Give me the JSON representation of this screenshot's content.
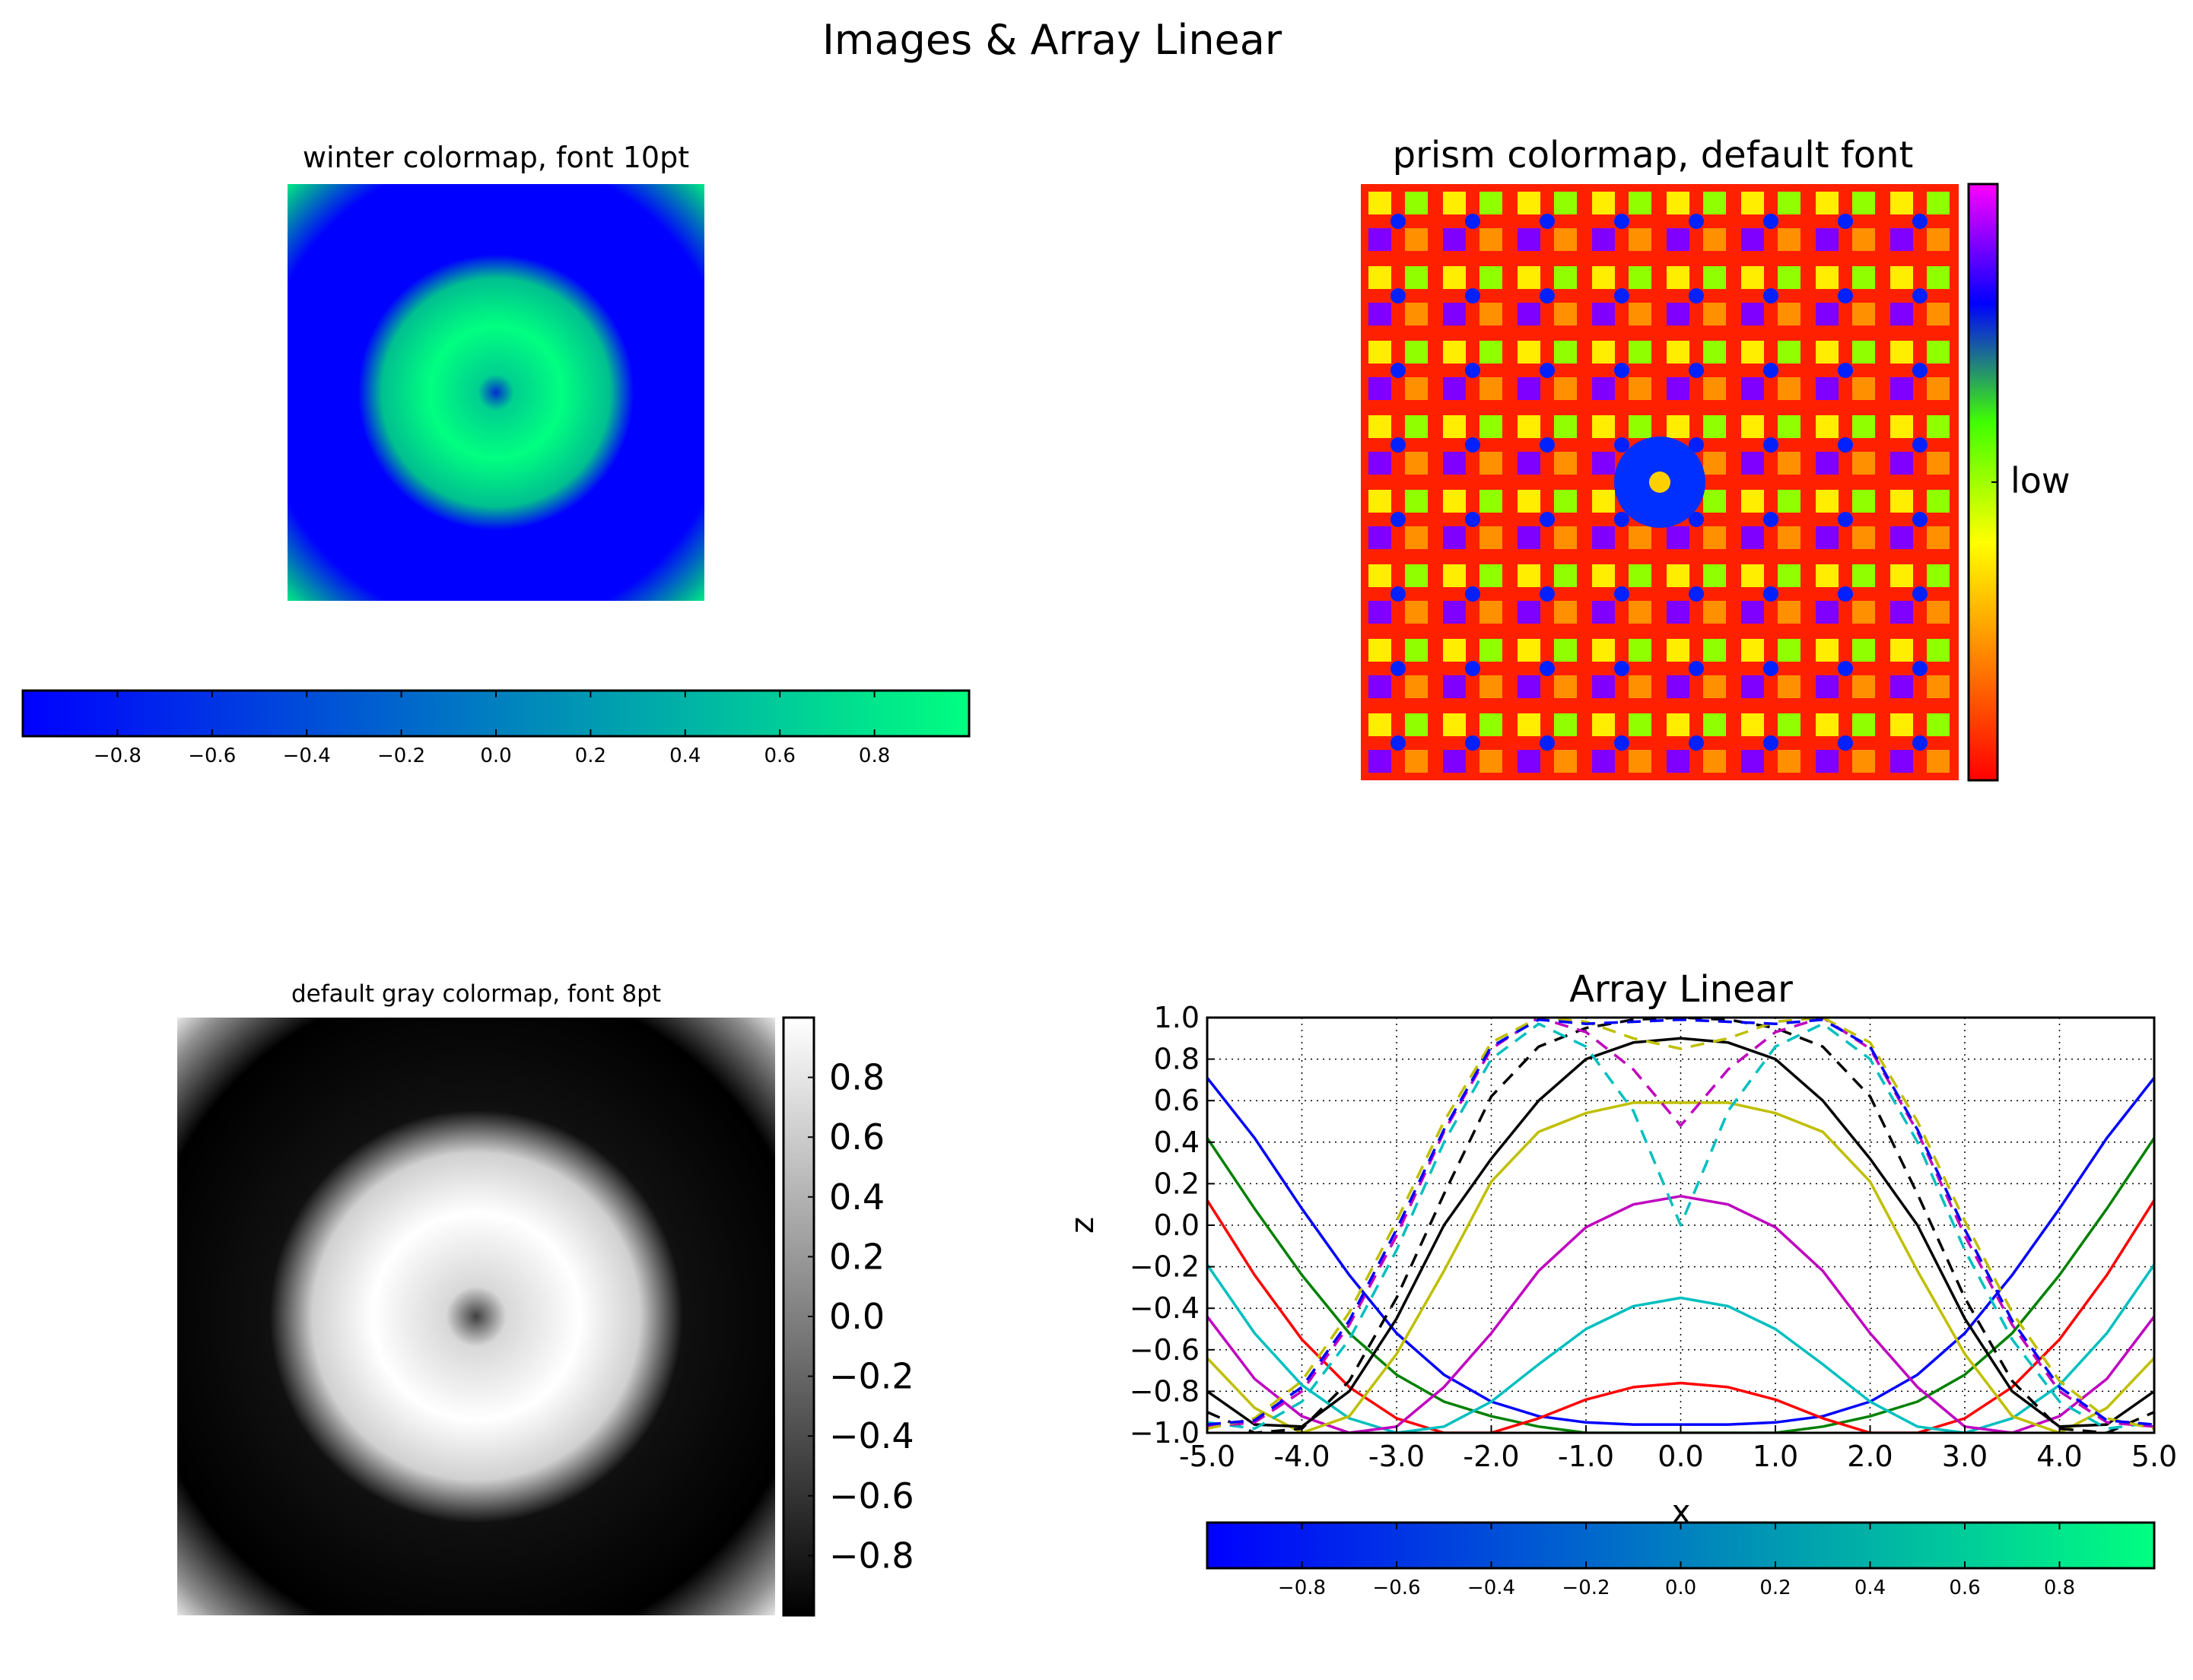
{
  "figure": {
    "title": "Images & Array Linear"
  },
  "chart_data": [
    {
      "type": "heatmap",
      "title": "winter colormap, font 10pt",
      "colormap": "winter",
      "colormap_stops": [
        "#0000ff",
        "#00ff80"
      ],
      "field": "sin(r) ring pattern (center low, ring high, corners high)",
      "colorbar": {
        "orientation": "horizontal",
        "range": [
          -1,
          1
        ],
        "ticks": [
          -0.8,
          -0.6,
          -0.4,
          -0.2,
          0.0,
          0.2,
          0.4,
          0.6,
          0.8
        ],
        "tick_labels": [
          "−0.8",
          "−0.6",
          "−0.4",
          "−0.2",
          "0.0",
          "0.2",
          "0.4",
          "0.6",
          "0.8"
        ]
      }
    },
    {
      "type": "heatmap",
      "title": "prism colormap, default font",
      "colormap": "prism",
      "colormap_stops": [
        "#ff0000",
        "#ff8000",
        "#ffff00",
        "#80ff00",
        "#0000ff",
        "#ff00ff"
      ],
      "colorbar": {
        "orientation": "vertical",
        "ticks": [
          0.0
        ],
        "tick_labels": [
          "low"
        ]
      }
    },
    {
      "type": "heatmap",
      "title": "default gray colormap, font 8pt",
      "colormap": "gray",
      "colormap_stops": [
        "#000000",
        "#ffffff"
      ],
      "colorbar": {
        "orientation": "vertical",
        "range": [
          -1,
          1
        ],
        "ticks": [
          -0.8,
          -0.6,
          -0.4,
          -0.2,
          0.0,
          0.2,
          0.4,
          0.6,
          0.8
        ],
        "tick_labels": [
          "−0.8",
          "−0.6",
          "−0.4",
          "−0.2",
          "0.0",
          "0.2",
          "0.4",
          "0.6",
          "0.8"
        ]
      }
    },
    {
      "type": "line",
      "title": "Array Linear",
      "xlabel": "x",
      "ylabel": "z",
      "xlim": [
        -5,
        5
      ],
      "ylim": [
        -1,
        1
      ],
      "grid": true,
      "x_ticks": [
        -5,
        -4,
        -3,
        -2,
        -1,
        0,
        1,
        2,
        3,
        4,
        5
      ],
      "x_tick_labels": [
        "-5.0",
        "-4.0",
        "-3.0",
        "-2.0",
        "-1.0",
        "0.0",
        "1.0",
        "2.0",
        "3.0",
        "4.0",
        "5.0"
      ],
      "y_ticks": [
        -1,
        -0.8,
        -0.6,
        -0.4,
        -0.2,
        0,
        0.2,
        0.4,
        0.6,
        0.8,
        1
      ],
      "y_tick_labels": [
        "−1.0",
        "−0.8",
        "−0.6",
        "−0.4",
        "−0.2",
        "0.0",
        "0.2",
        "0.4",
        "0.6",
        "0.8",
        "1.0"
      ],
      "x": [
        -5,
        -4.5,
        -4,
        -3.5,
        -3,
        -2.5,
        -2,
        -1.5,
        -1,
        -0.5,
        0,
        0.5,
        1,
        1.5,
        2,
        2.5,
        3,
        3.5,
        4,
        4.5,
        5
      ],
      "series": [
        {
          "color": "#0000ff",
          "dash": "solid",
          "values": [
            0.71,
            0.42,
            0.08,
            -0.24,
            -0.52,
            -0.72,
            -0.85,
            -0.92,
            -0.95,
            -0.96,
            -0.96,
            -0.96,
            -0.95,
            -0.92,
            -0.85,
            -0.72,
            -0.52,
            -0.24,
            0.08,
            0.42,
            0.71
          ]
        },
        {
          "color": "#008000",
          "dash": "solid",
          "values": [
            0.42,
            0.08,
            -0.24,
            -0.52,
            -0.72,
            -0.85,
            -0.92,
            -0.97,
            -1.0,
            -1.0,
            -1.0,
            -1.0,
            -1.0,
            -0.97,
            -0.92,
            -0.85,
            -0.72,
            -0.52,
            -0.24,
            0.08,
            0.42
          ]
        },
        {
          "color": "#ff0000",
          "dash": "solid",
          "values": [
            0.12,
            -0.24,
            -0.55,
            -0.78,
            -0.93,
            -1.0,
            -1.0,
            -0.93,
            -0.84,
            -0.78,
            -0.76,
            -0.78,
            -0.84,
            -0.93,
            -1.0,
            -1.0,
            -0.93,
            -0.78,
            -0.55,
            -0.24,
            0.12
          ]
        },
        {
          "color": "#00bfbf",
          "dash": "solid",
          "values": [
            -0.19,
            -0.52,
            -0.77,
            -0.93,
            -1.0,
            -0.97,
            -0.85,
            -0.67,
            -0.5,
            -0.39,
            -0.35,
            -0.39,
            -0.5,
            -0.67,
            -0.85,
            -0.97,
            -1.0,
            -0.93,
            -0.77,
            -0.52,
            -0.19
          ]
        },
        {
          "color": "#bf00bf",
          "dash": "solid",
          "values": [
            -0.44,
            -0.74,
            -0.92,
            -1.0,
            -0.97,
            -0.78,
            -0.52,
            -0.22,
            -0.01,
            0.1,
            0.14,
            0.1,
            -0.01,
            -0.22,
            -0.52,
            -0.78,
            -0.97,
            -1.0,
            -0.92,
            -0.74,
            -0.44
          ]
        },
        {
          "color": "#bfbf00",
          "dash": "solid",
          "values": [
            -0.64,
            -0.88,
            -1.0,
            -0.92,
            -0.62,
            -0.22,
            0.21,
            0.45,
            0.54,
            0.59,
            0.59,
            0.59,
            0.54,
            0.45,
            0.21,
            -0.22,
            -0.62,
            -0.92,
            -1.0,
            -0.88,
            -0.64
          ]
        },
        {
          "color": "#000000",
          "dash": "solid",
          "values": [
            -0.8,
            -0.96,
            -0.97,
            -0.8,
            -0.45,
            0.0,
            0.32,
            0.6,
            0.8,
            0.88,
            0.9,
            0.88,
            0.8,
            0.6,
            0.32,
            0.0,
            -0.45,
            -0.8,
            -0.97,
            -0.96,
            -0.8
          ]
        },
        {
          "color": "#000000",
          "dash": "dashed",
          "values": [
            -0.9,
            -1.0,
            -0.98,
            -0.75,
            -0.35,
            0.15,
            0.62,
            0.86,
            0.95,
            0.99,
            1.0,
            0.99,
            0.95,
            0.86,
            0.62,
            0.15,
            -0.35,
            -0.75,
            -0.98,
            -1.0,
            -0.9
          ]
        },
        {
          "color": "#00bfbf",
          "dash": "dashed",
          "values": [
            -0.95,
            -0.98,
            -0.85,
            -0.55,
            -0.12,
            0.4,
            0.8,
            0.97,
            0.86,
            0.55,
            0.0,
            0.55,
            0.86,
            0.97,
            0.8,
            0.4,
            -0.12,
            -0.55,
            -0.85,
            -0.98,
            -0.95
          ]
        },
        {
          "color": "#bf00bf",
          "dash": "dashed",
          "values": [
            -0.97,
            -0.95,
            -0.8,
            -0.48,
            -0.05,
            0.45,
            0.85,
            1.0,
            0.93,
            0.75,
            0.48,
            0.75,
            0.93,
            1.0,
            0.85,
            0.45,
            -0.05,
            -0.48,
            -0.8,
            -0.95,
            -0.97
          ]
        },
        {
          "color": "#bfbf00",
          "dash": "dashed",
          "values": [
            -0.98,
            -0.93,
            -0.75,
            -0.42,
            0.02,
            0.5,
            0.88,
            1.0,
            0.98,
            0.9,
            0.85,
            0.9,
            0.98,
            1.0,
            0.88,
            0.5,
            0.02,
            -0.42,
            -0.75,
            -0.93,
            -0.98
          ]
        },
        {
          "color": "#0000ff",
          "dash": "dashed",
          "values": [
            -0.96,
            -0.94,
            -0.78,
            -0.46,
            -0.02,
            0.46,
            0.86,
            0.99,
            0.97,
            0.98,
            0.99,
            0.98,
            0.97,
            0.99,
            0.86,
            0.46,
            -0.02,
            -0.46,
            -0.78,
            -0.94,
            -0.96
          ]
        }
      ],
      "colorbar": {
        "orientation": "horizontal",
        "colormap": "winter",
        "range": [
          -1,
          1
        ],
        "ticks": [
          -0.8,
          -0.6,
          -0.4,
          -0.2,
          0.0,
          0.2,
          0.4,
          0.6,
          0.8
        ],
        "tick_labels": [
          "−0.8",
          "−0.6",
          "−0.4",
          "−0.2",
          "0.0",
          "0.2",
          "0.4",
          "0.6",
          "0.8"
        ]
      }
    }
  ]
}
